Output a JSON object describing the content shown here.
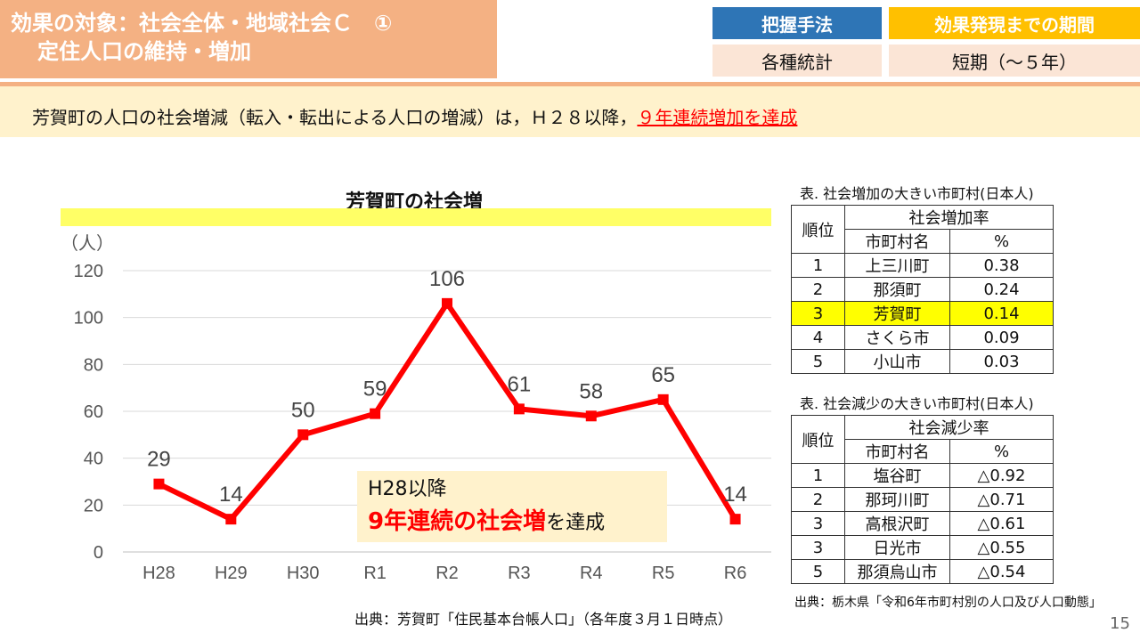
{
  "header": {
    "title_line1": "効果の対象：社会全体・地域社会Ｃ　①",
    "title_line2": "定住人口の維持・増加",
    "method_label": "把握手法",
    "method_value": "各種統計",
    "period_label": "効果発現までの期間",
    "period_value": "短期（～５年）"
  },
  "summary": {
    "text": "芳賀町の人口の社会増減（転入・転出による人口の増減）は，Ｈ２８以降，",
    "highlight": "９年連続増加を達成"
  },
  "chart_data": {
    "type": "line",
    "title": "芳賀町の社会増",
    "ylabel": "（人）",
    "categories": [
      "H28",
      "H29",
      "H30",
      "R1",
      "R2",
      "R3",
      "R4",
      "R5",
      "R6"
    ],
    "values": [
      29,
      14,
      50,
      59,
      106,
      61,
      58,
      65,
      14
    ],
    "ylim": [
      0,
      120
    ],
    "yticks": [
      0,
      20,
      40,
      60,
      80,
      100,
      120
    ],
    "grid": true,
    "color": "#ff0000",
    "annotation_line1": "H28以降",
    "annotation_emphasis": "9年連続の社会増",
    "annotation_suffix": "を達成"
  },
  "increase_table": {
    "caption": "表. 社会増加の大きい市町村(日本人)",
    "rank_header": "順位",
    "group_header": "社会増加率",
    "name_header": "市町村名",
    "value_header": "%",
    "rows": [
      {
        "rank": "1",
        "name": "上三川町",
        "value": "0.38"
      },
      {
        "rank": "2",
        "name": "那須町",
        "value": "0.24"
      },
      {
        "rank": "3",
        "name": "芳賀町",
        "value": "0.14"
      },
      {
        "rank": "4",
        "name": "さくら市",
        "value": "0.09"
      },
      {
        "rank": "5",
        "name": "小山市",
        "value": "0.03"
      }
    ]
  },
  "decrease_table": {
    "caption": "表. 社会減少の大きい市町村(日本人)",
    "rank_header": "順位",
    "group_header": "社会減少率",
    "name_header": "市町村名",
    "value_header": "%",
    "rows": [
      {
        "rank": "1",
        "name": "塩谷町",
        "value": "△0.92"
      },
      {
        "rank": "2",
        "name": "那珂川町",
        "value": "△0.71"
      },
      {
        "rank": "3",
        "name": "高根沢町",
        "value": "△0.61"
      },
      {
        "rank": "3",
        "name": "日光市",
        "value": "△0.55"
      },
      {
        "rank": "5",
        "name": "那須烏山市",
        "value": "△0.54"
      }
    ]
  },
  "sources": {
    "chart_source": "出典：芳賀町「住民基本台帳人口」（各年度３月１日時点）",
    "table_source": "出典：栃木県「令和6年市町村別の人口及び人口動態」"
  },
  "page_number": "15"
}
